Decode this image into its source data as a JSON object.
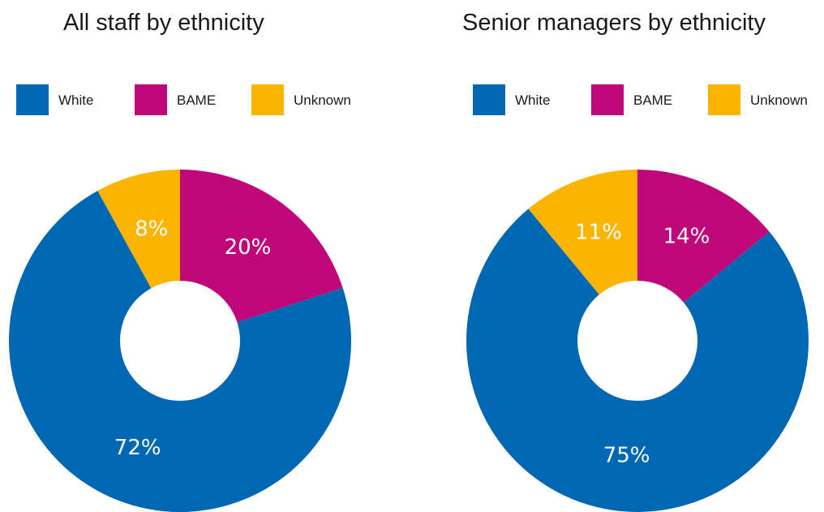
{
  "chart_data": [
    {
      "type": "pie",
      "title": "All staff by ethnicity",
      "categories": [
        "White",
        "BAME",
        "Unknown"
      ],
      "values": [
        72,
        20,
        8
      ],
      "labels": [
        "72%",
        "20%",
        "8%"
      ],
      "colors": [
        "#0067b3",
        "#c0077a",
        "#fbb400"
      ],
      "legend": "top",
      "style": "donut"
    },
    {
      "type": "pie",
      "title": "Senior managers by ethnicity",
      "categories": [
        "White",
        "BAME",
        "Unknown"
      ],
      "values": [
        75,
        14,
        11
      ],
      "labels": [
        "75%",
        "14%",
        "11%"
      ],
      "colors": [
        "#0067b3",
        "#c0077a",
        "#fbb400"
      ],
      "legend": "top",
      "style": "donut"
    }
  ]
}
